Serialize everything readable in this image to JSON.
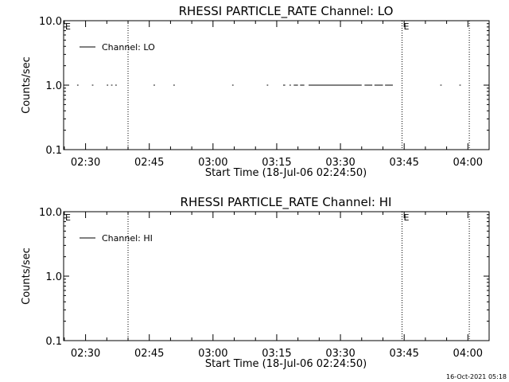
{
  "footer": {
    "timestamp": "16-Oct-2021 05:18"
  },
  "colors": {
    "axis": "#000000",
    "data": "#000000"
  },
  "chart_data": [
    {
      "type": "line",
      "title": "RHESSI PARTICLE_RATE Channel: LO",
      "xlabel": "Start Time (18-Jul-06 02:24:50)",
      "ylabel": "Counts/sec",
      "y_scale": "log",
      "ylim": [
        0.1,
        10.0
      ],
      "y_ticks": [
        "10.0",
        "1.0",
        "0.1"
      ],
      "xlim": [
        "02:24:50",
        "04:05:00"
      ],
      "x_ticks": [
        "02:30",
        "02:45",
        "03:00",
        "03:15",
        "03:30",
        "03:45",
        "04:00"
      ],
      "legend": {
        "position": "top-left",
        "entries": [
          "Channel: LO"
        ]
      },
      "markers": [
        {
          "time": "02:40:00",
          "label": ""
        },
        {
          "time": "03:44:30",
          "label": "E"
        },
        {
          "time": "04:00:20",
          "label": ""
        }
      ],
      "edge_label": "E",
      "series": [
        {
          "name": "Channel: LO",
          "segments": [
            {
              "start": "02:28:00",
              "end": "02:28:20",
              "value": 1.0
            },
            {
              "start": "02:31:30",
              "end": "02:31:50",
              "value": 1.0
            },
            {
              "start": "02:35:00",
              "end": "02:35:20",
              "value": 1.0
            },
            {
              "start": "02:36:00",
              "end": "02:36:20",
              "value": 1.0
            },
            {
              "start": "02:37:00",
              "end": "02:37:20",
              "value": 1.0
            },
            {
              "start": "02:46:00",
              "end": "02:46:20",
              "value": 1.0
            },
            {
              "start": "02:50:40",
              "end": "02:51:00",
              "value": 1.0
            },
            {
              "start": "03:04:30",
              "end": "03:04:50",
              "value": 1.0
            },
            {
              "start": "03:12:40",
              "end": "03:13:00",
              "value": 1.0
            },
            {
              "start": "03:16:30",
              "end": "03:17:00",
              "value": 1.0
            },
            {
              "start": "03:18:00",
              "end": "03:18:20",
              "value": 1.0
            },
            {
              "start": "03:19:00",
              "end": "03:20:00",
              "value": 1.0
            },
            {
              "start": "03:20:30",
              "end": "03:21:30",
              "value": 1.0
            },
            {
              "start": "03:22:30",
              "end": "03:35:00",
              "value": 1.0
            },
            {
              "start": "03:35:40",
              "end": "03:37:30",
              "value": 1.0
            },
            {
              "start": "03:38:00",
              "end": "03:40:00",
              "value": 1.0
            },
            {
              "start": "03:40:30",
              "end": "03:42:20",
              "value": 1.0
            },
            {
              "start": "03:53:30",
              "end": "03:53:50",
              "value": 1.0
            },
            {
              "start": "03:58:00",
              "end": "03:58:20",
              "value": 1.0
            }
          ]
        }
      ]
    },
    {
      "type": "line",
      "title": "RHESSI PARTICLE_RATE Channel: HI",
      "xlabel": "Start Time (18-Jul-06 02:24:50)",
      "ylabel": "Counts/sec",
      "y_scale": "log",
      "ylim": [
        0.1,
        10.0
      ],
      "y_ticks": [
        "10.0",
        "1.0",
        "0.1"
      ],
      "xlim": [
        "02:24:50",
        "04:05:00"
      ],
      "x_ticks": [
        "02:30",
        "02:45",
        "03:00",
        "03:15",
        "03:30",
        "03:45",
        "04:00"
      ],
      "legend": {
        "position": "top-left",
        "entries": [
          "Channel: HI"
        ]
      },
      "markers": [
        {
          "time": "02:40:00",
          "label": ""
        },
        {
          "time": "03:44:30",
          "label": "E"
        },
        {
          "time": "04:00:20",
          "label": ""
        }
      ],
      "edge_label": "E",
      "series": [
        {
          "name": "Channel: HI",
          "segments": []
        }
      ]
    }
  ]
}
